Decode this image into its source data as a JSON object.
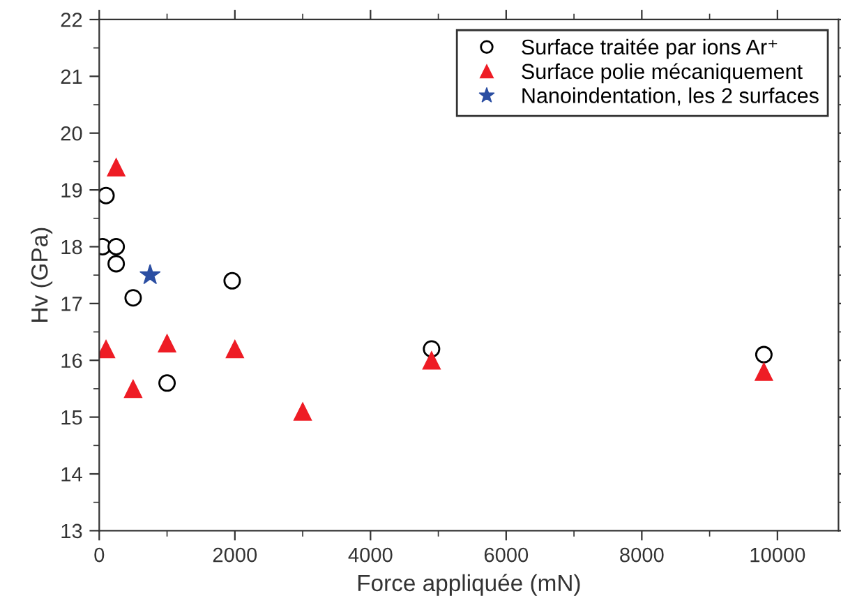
{
  "chart_data": {
    "type": "scatter",
    "xlabel": "Force appliquée (mN)",
    "ylabel": "Hv (GPa)",
    "series": [
      {
        "name": "Surface traitée par ions Ar⁺",
        "color": "#000000",
        "marker": "circle",
        "x": [
          100,
          50,
          250,
          250,
          500,
          1000,
          1960,
          4900,
          9800
        ],
        "values": [
          18.9,
          18.0,
          18.0,
          17.7,
          17.1,
          15.6,
          17.4,
          16.2,
          16.1
        ]
      },
      {
        "name": "Surface polie mécaniquement",
        "color": "#ee1c25",
        "marker": "triangle",
        "x": [
          100,
          250,
          500,
          1000,
          2000,
          3000,
          4900,
          9800
        ],
        "values": [
          16.2,
          19.4,
          15.5,
          16.3,
          16.2,
          15.1,
          16.0,
          15.8
        ]
      },
      {
        "name": "Nanoindentation, les 2 surfaces",
        "color": "#2b4ea2",
        "marker": "star",
        "x": [
          750
        ],
        "values": [
          17.5
        ]
      }
    ],
    "xlim": [
      0,
      10900
    ],
    "xticks": [
      0,
      2000,
      4000,
      6000,
      8000,
      10000
    ],
    "ylim": [
      13,
      22
    ],
    "yticks": [
      13,
      14,
      15,
      16,
      17,
      18,
      19,
      20,
      21,
      22
    ],
    "grid": false,
    "legend": "top right"
  }
}
